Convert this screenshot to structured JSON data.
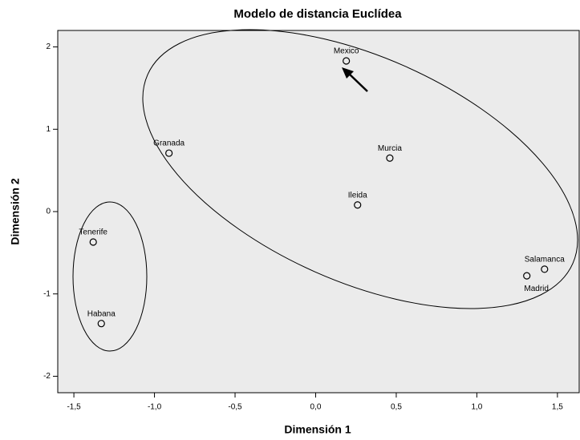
{
  "chart_data": {
    "type": "scatter",
    "title": "Modelo de distancia Euclídea",
    "xlabel": "Dimensión 1",
    "ylabel": "Dimensión 2",
    "labels": [
      "Mexico",
      "Murcia",
      "Ileida",
      "Granada",
      "Tenerife",
      "Habana",
      "Salamanca",
      "Madrid"
    ],
    "x": [
      0.19,
      0.46,
      0.26,
      -0.91,
      -1.38,
      -1.33,
      1.42,
      1.31
    ],
    "values": [
      1.83,
      0.65,
      0.08,
      0.71,
      -0.37,
      -1.36,
      -0.7,
      -0.78
    ],
    "color": "#000000",
    "plot_background": "#ebebeb",
    "xlim": [
      -1.6,
      1.64
    ],
    "ylim": [
      -2.2,
      2.2
    ],
    "xticks": [
      {
        "value": -1.5,
        "label": "-1,5"
      },
      {
        "value": -1.0,
        "label": "-1,0"
      },
      {
        "value": -0.5,
        "label": "-0,5"
      },
      {
        "value": 0,
        "label": "0,0"
      },
      {
        "value": 0.5,
        "label": "0,5"
      },
      {
        "value": 1.0,
        "label": "1,0"
      },
      {
        "value": 1.5,
        "label": "1,5"
      }
    ],
    "yticks": [
      -2,
      -1,
      0,
      1,
      2
    ]
  }
}
